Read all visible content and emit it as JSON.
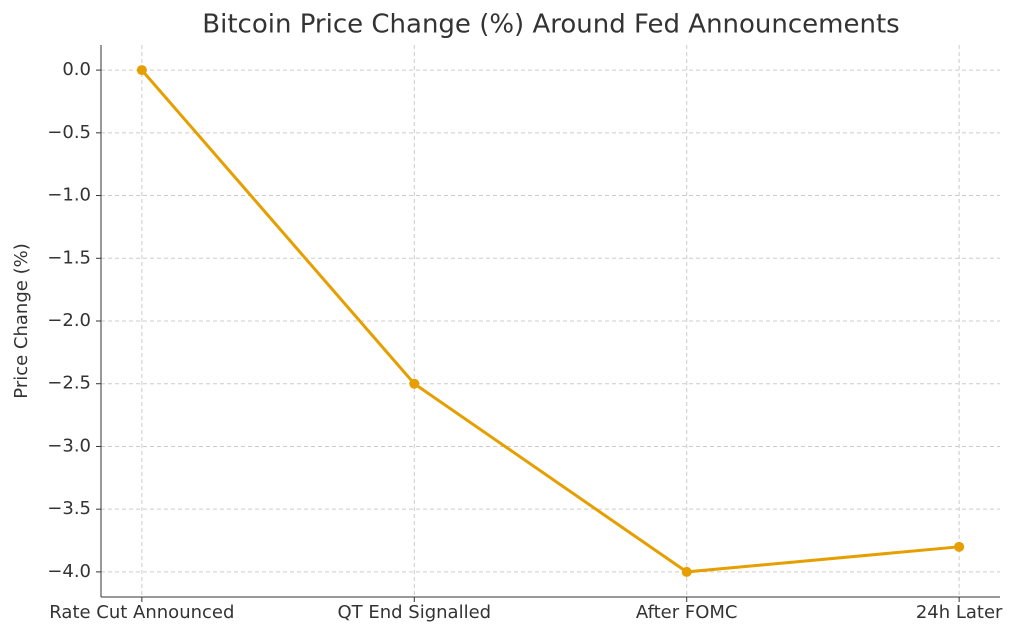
{
  "chart_data": {
    "type": "line",
    "title": "Bitcoin Price Change (%) Around Fed Announcements",
    "y_label": "Price Change (%)",
    "categories": [
      "Rate Cut Announced",
      "QT End Signalled",
      "After FOMC",
      "24h Later"
    ],
    "values": [
      0.0,
      -2.5,
      -4.0,
      -3.8
    ],
    "color": "#e69f00",
    "ylim": [
      -4.2,
      0.2
    ],
    "yticks": [
      {
        "value": 0,
        "label": "0.0"
      },
      {
        "value": -0.5,
        "label": "−0.5"
      },
      {
        "value": -1,
        "label": "−1.0"
      },
      {
        "value": -1.5,
        "label": "−1.5"
      },
      {
        "value": -2,
        "label": "−2.0"
      },
      {
        "value": -2.5,
        "label": "−2.5"
      },
      {
        "value": -3,
        "label": "−3.0"
      },
      {
        "value": -3.5,
        "label": "−3.5"
      },
      {
        "value": -4,
        "label": "−4.0"
      }
    ],
    "grid": true
  }
}
